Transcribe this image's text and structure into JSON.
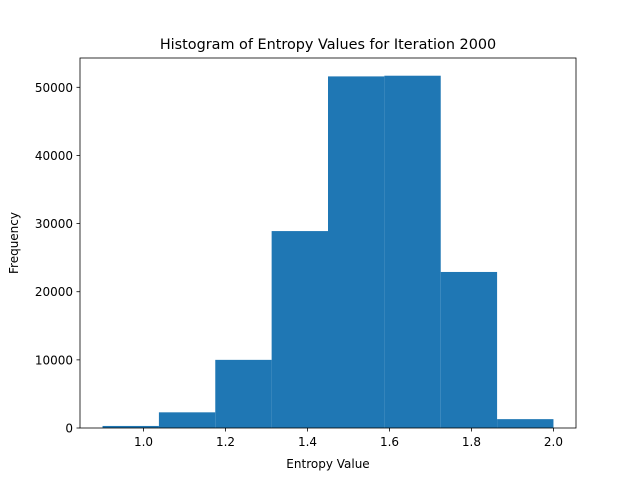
{
  "chart_data": {
    "type": "bar",
    "title": "Histogram of Entropy Values for Iteration 2000",
    "xlabel": "Entropy Value",
    "ylabel": "Frequency",
    "bin_edges": [
      0.9,
      1.0375,
      1.175,
      1.3125,
      1.45,
      1.5875,
      1.725,
      1.8625,
      2.0
    ],
    "values": [
      300,
      2300,
      10000,
      28900,
      51600,
      51700,
      22900,
      1300
    ],
    "xlim": [
      0.845,
      2.055
    ],
    "ylim": [
      0,
      54300
    ],
    "x_ticks": [
      1.0,
      1.2,
      1.4,
      1.6,
      1.8,
      2.0
    ],
    "x_tick_labels": [
      "1.0",
      "1.2",
      "1.4",
      "1.6",
      "1.8",
      "2.0"
    ],
    "y_ticks": [
      0,
      10000,
      20000,
      30000,
      40000,
      50000
    ],
    "y_tick_labels": [
      "0",
      "10000",
      "20000",
      "30000",
      "40000",
      "50000"
    ],
    "bar_color": "#1f77b4",
    "grid": false,
    "legend": "none"
  }
}
